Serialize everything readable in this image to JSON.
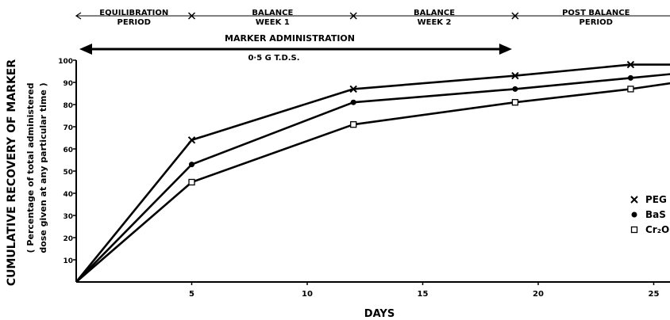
{
  "chart_data": {
    "type": "line",
    "xlabel": "DAYS",
    "ylabel": "CUMULATIVE RECOVERY OF MARKER",
    "ylabel_sub1": "( Percentage of total administered",
    "ylabel_sub2": "dose given at any particular time )",
    "xlim": [
      0,
      26
    ],
    "ylim": [
      0,
      100
    ],
    "x_ticks": [
      5,
      10,
      15,
      20,
      25
    ],
    "y_ticks": [
      10,
      20,
      30,
      40,
      50,
      60,
      70,
      80,
      90,
      100
    ],
    "grid": false,
    "legend_position": "right",
    "periods": [
      {
        "label1": "EQUILIBRATION",
        "label2": "PERIOD",
        "start": 0,
        "end": 5
      },
      {
        "label1": "BALANCE",
        "label2": "WEEK 1",
        "start": 5,
        "end": 12
      },
      {
        "label1": "BALANCE",
        "label2": "WEEK 2",
        "start": 12,
        "end": 19
      },
      {
        "label1": "POST BALANCE",
        "label2": "PERIOD",
        "start": 19,
        "end": 26
      }
    ],
    "administration": {
      "label": "MARKER ADMINISTRATION",
      "dose": "0·5 G T.D.S.",
      "start": 0,
      "end": 19
    },
    "series": [
      {
        "name": "PEG",
        "marker": "x",
        "x": [
          0,
          5,
          12,
          19,
          24,
          26
        ],
        "y": [
          0,
          64,
          87,
          93,
          98,
          98
        ]
      },
      {
        "name": "BaS",
        "marker": "dot",
        "x": [
          0,
          5,
          12,
          19,
          24,
          26
        ],
        "y": [
          0,
          53,
          81,
          87,
          92,
          94
        ]
      },
      {
        "name": "Cr₂O",
        "marker": "square",
        "x": [
          0,
          5,
          12,
          19,
          24,
          26
        ],
        "y": [
          0,
          45,
          71,
          81,
          87,
          90
        ]
      }
    ]
  }
}
